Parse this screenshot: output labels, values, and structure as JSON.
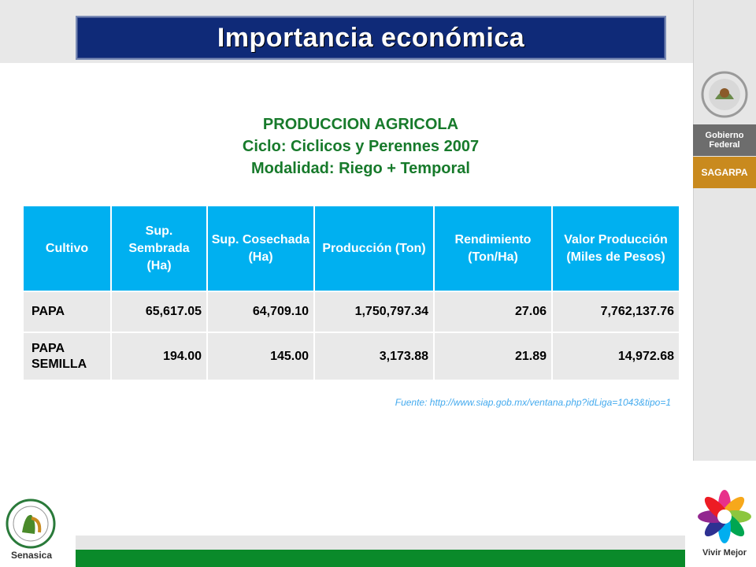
{
  "title": "Importancia económica",
  "subtitle": {
    "line1": "PRODUCCION AGRICOLA",
    "line2": "Ciclo: Ciclicos y Perennes 2007",
    "line3": "Modalidad: Riego + Temporal"
  },
  "table": {
    "headers": [
      "Cultivo",
      "Sup. Sembrada (Ha)",
      "Sup. Cosechada (Ha)",
      "Producción (Ton)",
      "Rendimiento (Ton/Ha)",
      "Valor Producción (Miles de Pesos)"
    ],
    "rows": [
      [
        "PAPA",
        "65,617.05",
        "64,709.10",
        "1,750,797.34",
        "27.06",
        "7,762,137.76"
      ],
      [
        "PAPA SEMILLA",
        "194.00",
        "145.00",
        "3,173.88",
        "21.89",
        "14,972.68"
      ]
    ]
  },
  "source": "Fuente: http://www.siap.gob.mx/ventana.php?idLiga=1043&tipo=1",
  "branding": {
    "gob_line1": "Gobierno",
    "gob_line2": "Federal",
    "sagarpa": "SAGARPA",
    "vivir_mejor": "Vivir Mejor",
    "senasica": "Senasica"
  },
  "colors": {
    "title_bg": "#0f2a78",
    "header_bg": "#00b0f0",
    "subtitle": "#177a2b",
    "green_bar": "#0a8a2a",
    "sagarpa": "#c98a1e"
  }
}
